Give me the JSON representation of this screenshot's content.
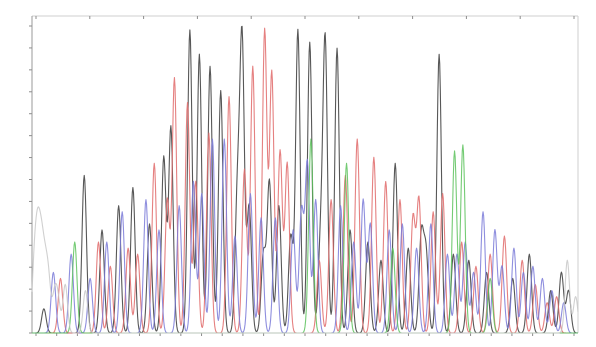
{
  "chart_data": {
    "type": "line",
    "title": "",
    "xlabel": "",
    "ylabel": "",
    "grid": false,
    "legend": "none",
    "xlim": [
      0,
      100
    ],
    "ylim": [
      0,
      100
    ],
    "series": [
      {
        "color": "#3a3a3a",
        "peaks": [
          [
            5,
            8
          ],
          [
            22,
            52
          ],
          [
            29.5,
            34
          ],
          [
            36.5,
            42
          ],
          [
            42.5,
            48
          ],
          [
            49.5,
            36
          ],
          [
            55.5,
            58
          ],
          [
            58.5,
            68
          ],
          [
            66.5,
            100
          ],
          [
            70.5,
            92
          ],
          [
            75,
            88
          ],
          [
            79.5,
            80
          ],
          [
            86.5,
            44
          ],
          [
            88.5,
            96
          ],
          [
            91.5,
            42
          ],
          [
            97.5,
            26
          ],
          [
            100,
            50
          ],
          [
            104,
            42
          ],
          [
            109,
            32
          ],
          [
            112,
            100
          ],
          [
            117,
            96
          ],
          [
            121.5,
            28
          ],
          [
            123.5,
            96
          ],
          [
            128.5,
            94
          ],
          [
            134,
            34
          ],
          [
            141.5,
            30
          ],
          [
            147,
            24
          ],
          [
            153,
            56
          ],
          [
            158.5,
            28
          ],
          [
            164,
            32
          ],
          [
            166,
            26
          ],
          [
            171.5,
            92
          ],
          [
            177.5,
            26
          ],
          [
            184,
            24
          ],
          [
            191.5,
            20
          ],
          [
            202.5,
            18
          ],
          [
            209.5,
            26
          ],
          [
            218.5,
            14
          ],
          [
            223,
            20
          ],
          [
            226,
            14
          ]
        ]
      },
      {
        "color": "#e06a6a",
        "peaks": [
          [
            12,
            18
          ],
          [
            28,
            30
          ],
          [
            33,
            22
          ],
          [
            40.5,
            28
          ],
          [
            44.5,
            26
          ],
          [
            51.5,
            56
          ],
          [
            57,
            44
          ],
          [
            60,
            84
          ],
          [
            65.5,
            76
          ],
          [
            69,
            50
          ],
          [
            74.5,
            66
          ],
          [
            83,
            78
          ],
          [
            89.5,
            54
          ],
          [
            93,
            88
          ],
          [
            98,
            100
          ],
          [
            101,
            86
          ],
          [
            104.5,
            60
          ],
          [
            107.5,
            56
          ],
          [
            121,
            24
          ],
          [
            126,
            44
          ],
          [
            132,
            52
          ],
          [
            137,
            64
          ],
          [
            144,
            58
          ],
          [
            149,
            50
          ],
          [
            155,
            44
          ],
          [
            160.5,
            38
          ],
          [
            163,
            44
          ],
          [
            169,
            40
          ],
          [
            173,
            46
          ],
          [
            181,
            30
          ],
          [
            187,
            22
          ],
          [
            193,
            26
          ],
          [
            199,
            32
          ],
          [
            206.5,
            24
          ],
          [
            212,
            16
          ],
          [
            217,
            10
          ],
          [
            221,
            12
          ]
        ]
      },
      {
        "color": "#7a7ad8",
        "peaks": [
          [
            9,
            20
          ],
          [
            16.5,
            26
          ],
          [
            24.5,
            18
          ],
          [
            31.5,
            30
          ],
          [
            38,
            40
          ],
          [
            48,
            44
          ],
          [
            53.5,
            34
          ],
          [
            62,
            42
          ],
          [
            68,
            50
          ],
          [
            71.5,
            46
          ],
          [
            76,
            64
          ],
          [
            81,
            64
          ],
          [
            85.5,
            32
          ],
          [
            92,
            46
          ],
          [
            96.5,
            38
          ],
          [
            102.5,
            38
          ],
          [
            110,
            34
          ],
          [
            113.5,
            40
          ],
          [
            116,
            56
          ],
          [
            119.5,
            44
          ],
          [
            130,
            42
          ],
          [
            135.5,
            30
          ],
          [
            139.5,
            44
          ],
          [
            142.5,
            36
          ],
          [
            150.5,
            34
          ],
          [
            156,
            36
          ],
          [
            162,
            28
          ],
          [
            168,
            36
          ],
          [
            175,
            26
          ],
          [
            179,
            26
          ],
          [
            182.5,
            30
          ],
          [
            186,
            20
          ],
          [
            190,
            40
          ],
          [
            195,
            34
          ],
          [
            198,
            22
          ],
          [
            203,
            28
          ],
          [
            207,
            20
          ],
          [
            211,
            22
          ],
          [
            215,
            18
          ],
          [
            219,
            14
          ],
          [
            224,
            10
          ]
        ]
      },
      {
        "color": "#5cc25c",
        "peaks": [
          [
            18,
            30
          ],
          [
            117.5,
            64
          ],
          [
            132.5,
            56
          ],
          [
            152,
            28
          ],
          [
            178,
            60
          ],
          [
            181.5,
            62
          ],
          [
            193,
            18
          ]
        ]
      },
      {
        "color": "#c8c8c8",
        "peaks": [
          [
            1,
            22
          ],
          [
            2.5,
            28
          ],
          [
            4,
            24
          ],
          [
            5.5,
            18
          ],
          [
            7,
            16
          ],
          [
            9.5,
            12
          ],
          [
            11,
            10
          ],
          [
            14,
            16
          ],
          [
            22.5,
            14
          ],
          [
            225.5,
            24
          ],
          [
            229,
            12
          ]
        ]
      }
    ]
  }
}
